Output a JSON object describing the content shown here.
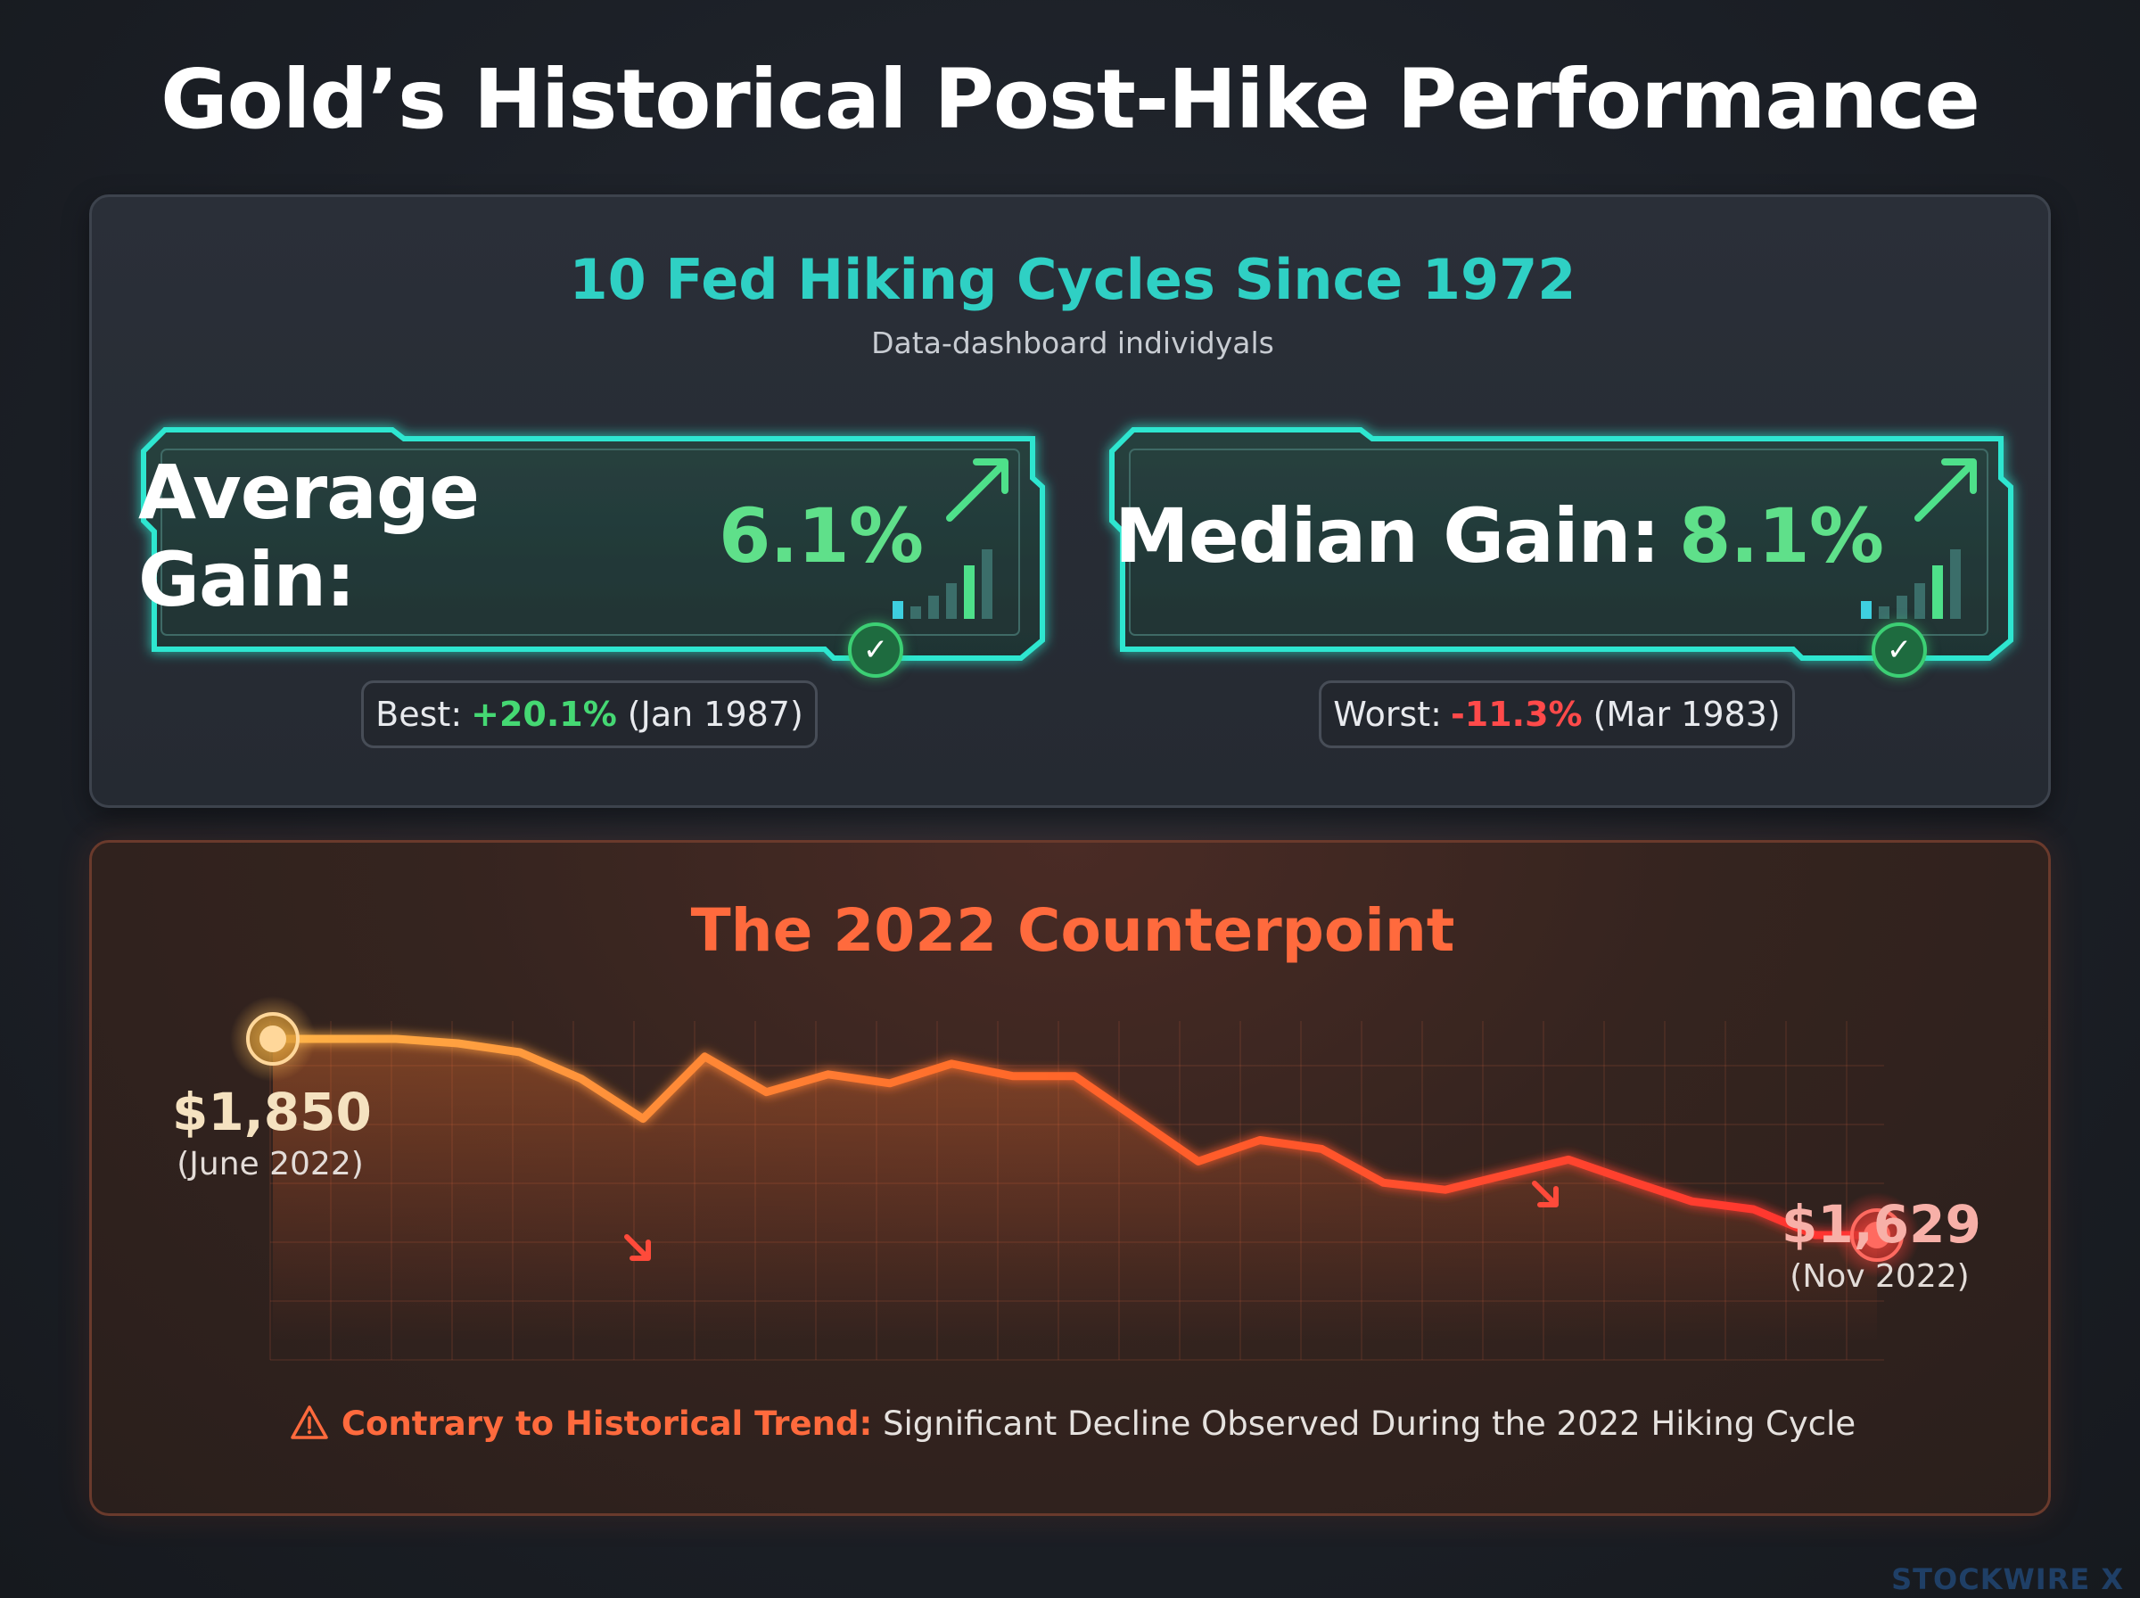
{
  "title": "Gold’s Historical Post-Hike Performance",
  "historical": {
    "title": "10 Fed Hiking Cycles Since 1972",
    "subtitle": "Data-dashboard individyals",
    "average": {
      "label": "Average Gain:",
      "value": "6.1%"
    },
    "median": {
      "label": "Median Gain:",
      "value": "8.1%"
    },
    "best": {
      "label": "Best:",
      "value": "+20.1%",
      "date": "(Jan 1987)"
    },
    "worst": {
      "label": "Worst:",
      "value": "-11.3%",
      "date": "(Mar 1983)"
    }
  },
  "counterpoint": {
    "title": "The 2022 Counterpoint",
    "start": {
      "price": "$1,850",
      "date": "(June 2022)"
    },
    "end": {
      "price": "$1,629",
      "date": "(Nov 2022)"
    },
    "note_bold": "Contrary to Historical Trend:",
    "note_text": " Significant Decline Observed During the 2022 Hiking Cycle",
    "warning_icon": "warning-triangle-icon"
  },
  "chart_data": {
    "type": "line",
    "title": "The 2022 Counterpoint",
    "xlabel": "",
    "ylabel": "",
    "grid": true,
    "x": [
      0,
      1,
      2,
      3,
      4,
      5,
      6,
      7,
      8,
      9,
      10,
      11,
      12,
      13,
      14,
      15,
      16,
      17,
      18,
      19,
      20,
      21,
      22,
      23,
      24,
      25,
      26
    ],
    "y": [
      1850,
      1850,
      1850,
      1845,
      1835,
      1805,
      1760,
      1830,
      1790,
      1810,
      1800,
      1822,
      1808,
      1808,
      1760,
      1712,
      1736,
      1726,
      1688,
      1680,
      1697,
      1714,
      1690,
      1667,
      1658,
      1629,
      1629
    ],
    "annotations": [
      {
        "point": "start",
        "label": "$1,850",
        "sublabel": "(June 2022)"
      },
      {
        "point": "end",
        "label": "$1,629",
        "sublabel": "(Nov 2022)"
      }
    ],
    "colors": {
      "start": "#ffb347",
      "end": "#ff3b30"
    }
  },
  "colors": {
    "teal": "#2fd0c4",
    "green": "#5fe08a",
    "red": "#ff4a4a",
    "orange": "#ff6a3d"
  },
  "watermark": "STOCKWIRE X"
}
